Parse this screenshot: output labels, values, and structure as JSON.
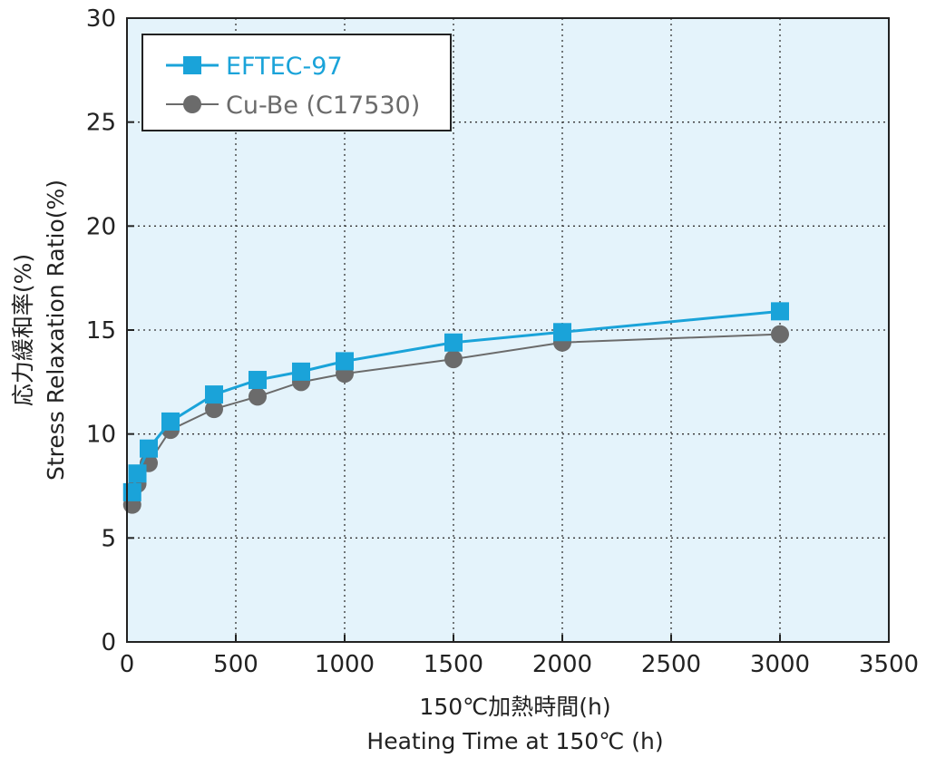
{
  "chart_data": {
    "type": "line",
    "x_title_jp": "150℃加熱時間(h)",
    "x_title_en": "Heating Time at 150℃ (h)",
    "y_title_jp": "応力緩和率(%)",
    "y_title_en": "Stress Relaxation Ratio(%)",
    "xlim": [
      0,
      3500
    ],
    "ylim": [
      0,
      30
    ],
    "x_ticks": [
      "0",
      "500",
      "1000",
      "1500",
      "2000",
      "2500",
      "3000",
      "3500"
    ],
    "y_ticks": [
      "0",
      "5",
      "10",
      "15",
      "20",
      "25",
      "30"
    ],
    "grid": true,
    "legend_position": "top-left",
    "plot_background": "#e4f3fb",
    "series": [
      {
        "name": "EFTEC-97",
        "marker": "square",
        "color": "#1aa3d9",
        "x": [
          24,
          48,
          100,
          200,
          400,
          600,
          800,
          1000,
          1500,
          2000,
          3000
        ],
        "y": [
          7.2,
          8.1,
          9.3,
          10.6,
          11.9,
          12.6,
          13.0,
          13.5,
          14.4,
          14.9,
          15.9
        ]
      },
      {
        "name": "Cu-Be (C17530)",
        "marker": "circle",
        "color": "#6b6b6b",
        "x": [
          24,
          48,
          100,
          200,
          400,
          600,
          800,
          1000,
          1500,
          2000,
          3000
        ],
        "y": [
          6.6,
          7.6,
          8.6,
          10.2,
          11.2,
          11.8,
          12.5,
          12.9,
          13.6,
          14.4,
          14.8
        ]
      }
    ]
  }
}
